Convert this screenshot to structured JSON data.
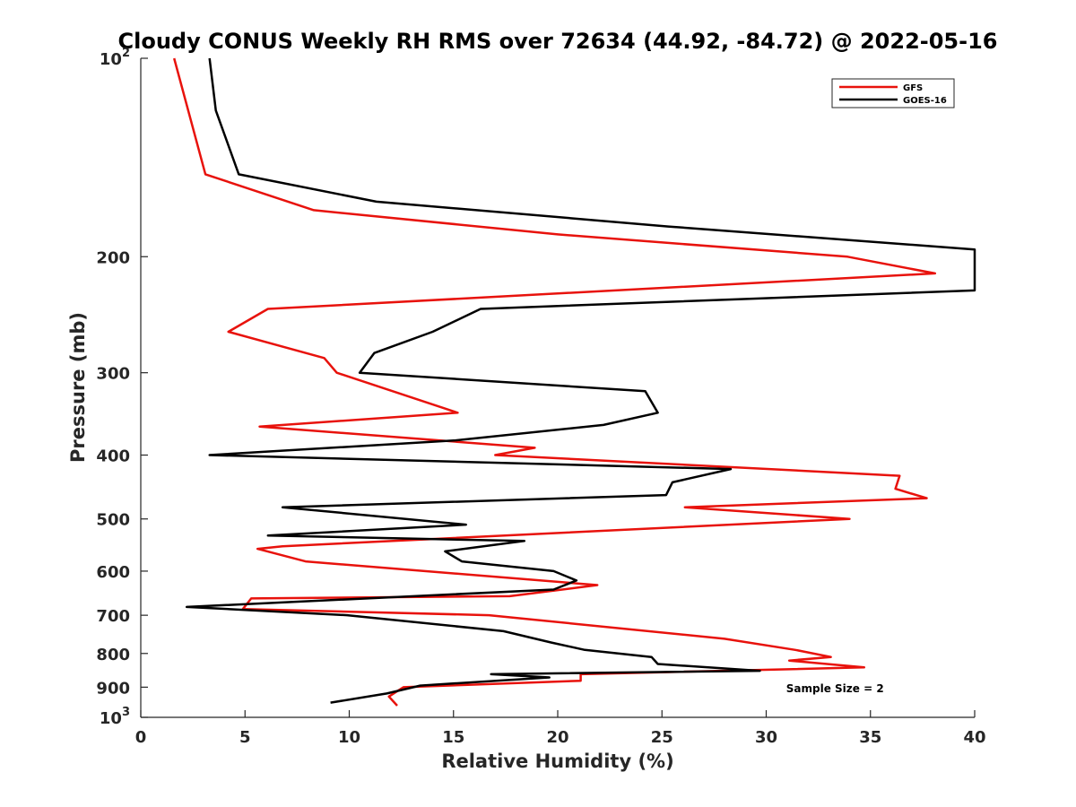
{
  "chart_data": {
    "type": "line",
    "title": "Cloudy CONUS Weekly RH RMS over 72634 (44.92, -84.72) @ 2022-05-16",
    "xlabel": "Relative Humidity (%)",
    "ylabel": "Pressure (mb)",
    "xlim": [
      0,
      40
    ],
    "ylim": [
      100,
      1000
    ],
    "y_scale": "log",
    "y_reversed": true,
    "grid": false,
    "legend_position": "top-right",
    "x_ticks": [
      0,
      5,
      10,
      15,
      20,
      25,
      30,
      35,
      40
    ],
    "y_ticks": [
      {
        "value": 100,
        "base": "10",
        "exp": "2"
      },
      {
        "value": 200,
        "label": "200"
      },
      {
        "value": 300,
        "label": "300"
      },
      {
        "value": 400,
        "label": "400"
      },
      {
        "value": 500,
        "label": "500"
      },
      {
        "value": 600,
        "label": "600"
      },
      {
        "value": 700,
        "label": "700"
      },
      {
        "value": 800,
        "label": "800"
      },
      {
        "value": 900,
        "label": "900"
      },
      {
        "value": 1000,
        "base": "10",
        "exp": "3"
      }
    ],
    "series": [
      {
        "name": "GFS",
        "color": "#e8120c",
        "points": [
          [
            1.6,
            100
          ],
          [
            3.1,
            150
          ],
          [
            8.3,
            170
          ],
          [
            20,
            185
          ],
          [
            33.9,
            200
          ],
          [
            38.1,
            212
          ],
          [
            6.1,
            240
          ],
          [
            4.2,
            260
          ],
          [
            8.8,
            285
          ],
          [
            9.4,
            300
          ],
          [
            15.2,
            345
          ],
          [
            5.7,
            362
          ],
          [
            18.9,
            390
          ],
          [
            17,
            400
          ],
          [
            36.4,
            430
          ],
          [
            36.2,
            450
          ],
          [
            37.7,
            465
          ],
          [
            26.1,
            480
          ],
          [
            34,
            500
          ],
          [
            6.8,
            550
          ],
          [
            5.6,
            555
          ],
          [
            7.9,
            580
          ],
          [
            21.9,
            630
          ],
          [
            17.7,
            655
          ],
          [
            5.3,
            660
          ],
          [
            4.9,
            685
          ],
          [
            16.7,
            700
          ],
          [
            28,
            760
          ],
          [
            31.4,
            790
          ],
          [
            33.1,
            810
          ],
          [
            31.1,
            820
          ],
          [
            34.7,
            840
          ],
          [
            21.1,
            860
          ],
          [
            21.1,
            880
          ],
          [
            12.6,
            900
          ],
          [
            11.9,
            930
          ],
          [
            12.3,
            960
          ]
        ]
      },
      {
        "name": "GOES-16",
        "color": "#000000",
        "points": [
          [
            3.3,
            100
          ],
          [
            3.6,
            120
          ],
          [
            4.7,
            150
          ],
          [
            11.3,
            165
          ],
          [
            25.3,
            180
          ],
          [
            40,
            195
          ],
          [
            40,
            225
          ],
          [
            16.3,
            240
          ],
          [
            14,
            260
          ],
          [
            11.2,
            280
          ],
          [
            10.5,
            300
          ],
          [
            24.2,
            320
          ],
          [
            24.8,
            345
          ],
          [
            22.2,
            360
          ],
          [
            15.1,
            380
          ],
          [
            3.3,
            400
          ],
          [
            28.3,
            420
          ],
          [
            25.5,
            440
          ],
          [
            25.2,
            460
          ],
          [
            6.8,
            480
          ],
          [
            15.6,
            510
          ],
          [
            6.1,
            530
          ],
          [
            18.4,
            540
          ],
          [
            14.6,
            560
          ],
          [
            15.4,
            580
          ],
          [
            19.8,
            600
          ],
          [
            20.9,
            620
          ],
          [
            19.8,
            640
          ],
          [
            2.2,
            680
          ],
          [
            9.9,
            700
          ],
          [
            17.4,
            740
          ],
          [
            19.7,
            770
          ],
          [
            21.3,
            790
          ],
          [
            24.5,
            810
          ],
          [
            24.8,
            830
          ],
          [
            29.7,
            850
          ],
          [
            16.8,
            860
          ],
          [
            19.6,
            870
          ],
          [
            13.4,
            895
          ],
          [
            11.8,
            920
          ],
          [
            9.1,
            950
          ]
        ]
      }
    ],
    "annotations": [
      {
        "text": "Sample Size = 2",
        "x": 33.3,
        "y": 905
      }
    ]
  }
}
